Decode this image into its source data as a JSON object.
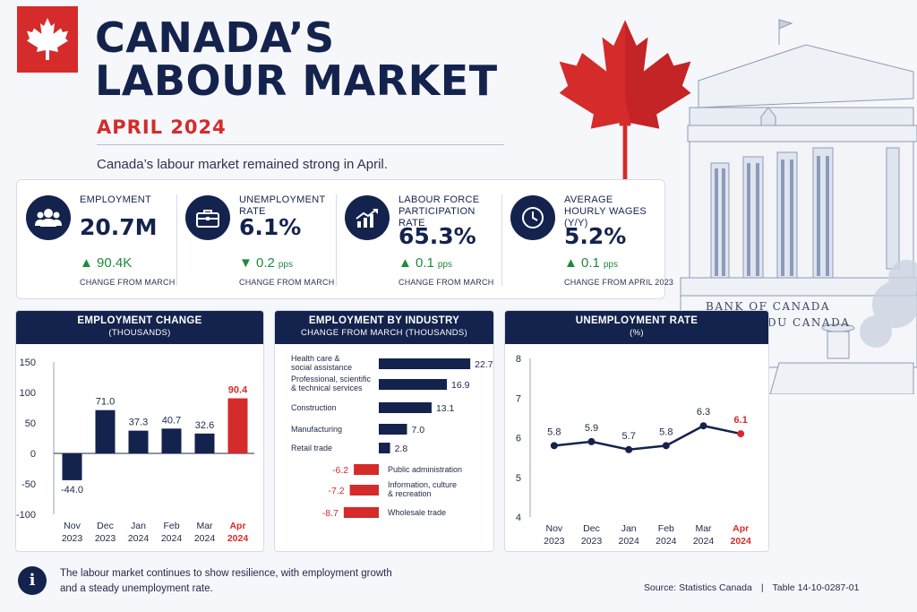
{
  "header": {
    "title_line1": "CANADA’S",
    "title_line2": "LABOUR MARKET",
    "subtitle": "APRIL 2024",
    "lead": "Canada’s labour market remained strong in April."
  },
  "building": {
    "sign_en": "BANK OF CANADA",
    "sign_fr": "BANQUE DU CANADA"
  },
  "kpis": [
    {
      "icon": "people-icon",
      "label": "EMPLOYMENT",
      "value": "20.7M",
      "direction": "up",
      "change": "90.4K",
      "unit": "",
      "note": "CHANGE FROM MARCH"
    },
    {
      "icon": "briefcase-icon",
      "label": "UNEMPLOYMENT RATE",
      "value": "6.1%",
      "direction": "down",
      "change": "0.2",
      "unit": "pps",
      "note": "CHANGE FROM MARCH"
    },
    {
      "icon": "growth-chart-icon",
      "label": "LABOUR FORCE PARTICIPATION RATE",
      "value": "65.3%",
      "direction": "up",
      "change": "0.1",
      "unit": "pps",
      "note": "CHANGE FROM MARCH"
    },
    {
      "icon": "clock-icon",
      "label": "AVERAGE HOURLY WAGES (Y/Y)",
      "value": "5.2%",
      "direction": "up",
      "change": "0.1",
      "unit": "pps",
      "note": "CHANGE FROM APRIL 2023"
    }
  ],
  "colors": {
    "navy": "#14234d",
    "red": "#d52b2b",
    "green": "#1f8a3a"
  },
  "chart_data": [
    {
      "type": "bar",
      "title": "EMPLOYMENT CHANGE",
      "subtitle": "(THOUSANDS)",
      "categories": [
        [
          "Nov",
          "2023"
        ],
        [
          "Dec",
          "2023"
        ],
        [
          "Jan",
          "2024"
        ],
        [
          "Feb",
          "2024"
        ],
        [
          "Mar",
          "2024"
        ],
        [
          "Apr",
          "2024"
        ]
      ],
      "values": [
        -44.0,
        71.0,
        37.3,
        40.7,
        32.6,
        90.4
      ],
      "value_labels": [
        "-44.0",
        "71.0",
        "37.3",
        "40.7",
        "32.6",
        "90.4"
      ],
      "highlight_index": 5,
      "ylim": [
        -100,
        150
      ],
      "yticks": [
        -100,
        -50,
        0,
        50,
        100,
        150
      ],
      "grid": false
    },
    {
      "type": "bar",
      "orientation": "horizontal",
      "title": "EMPLOYMENT BY INDUSTRY",
      "subtitle": "CHANGE FROM MARCH (THOUSANDS)",
      "categories": [
        [
          "Health care &",
          "social assistance"
        ],
        [
          "Professional, scientific",
          "& technical services"
        ],
        [
          "Construction"
        ],
        [
          "Manufacturing"
        ],
        [
          "Retail trade"
        ],
        [
          "Public administration"
        ],
        [
          "Information, culture",
          "& recreation"
        ],
        [
          "Wholesale trade"
        ]
      ],
      "values": [
        22.7,
        16.9,
        13.1,
        7.0,
        2.8,
        -6.2,
        -7.2,
        -8.7
      ],
      "value_labels": [
        "22.7",
        "16.9",
        "13.1",
        "7.0",
        "2.8",
        "-6.2",
        "-7.2",
        "-8.7"
      ]
    },
    {
      "type": "line",
      "title": "UNEMPLOYMENT RATE",
      "subtitle": "(%)",
      "categories": [
        [
          "Nov",
          "2023"
        ],
        [
          "Dec",
          "2023"
        ],
        [
          "Jan",
          "2024"
        ],
        [
          "Feb",
          "2024"
        ],
        [
          "Mar",
          "2024"
        ],
        [
          "Apr",
          "2024"
        ]
      ],
      "values": [
        5.8,
        5.9,
        5.7,
        5.8,
        6.3,
        6.1
      ],
      "value_labels": [
        "5.8",
        "5.9",
        "5.7",
        "5.8",
        "6.3",
        "6.1"
      ],
      "highlight_index": 5,
      "ylim": [
        4,
        8
      ],
      "yticks": [
        4,
        5,
        6,
        7,
        8
      ],
      "grid": false
    }
  ],
  "footer": {
    "note": "The labour market continues to show resilience, with employment growth and a steady unemployment rate.",
    "source": "Source: Statistics Canada",
    "table": "Table 14-10-0287-01"
  }
}
